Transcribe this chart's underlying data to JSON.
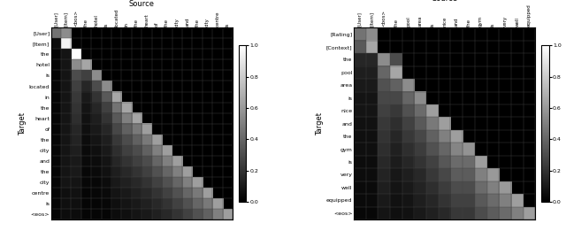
{
  "left_source_labels": [
    "[User]",
    "[Item]",
    "<bos>",
    "the",
    "hotel",
    "is",
    "located",
    "in",
    "the",
    "heart",
    "of",
    "the",
    "city",
    "and",
    "the",
    "city",
    "centre",
    "is"
  ],
  "left_target_labels": [
    "[User]",
    "[Item]",
    "the",
    "hotel",
    "is",
    "located",
    "in",
    "the",
    "heart",
    "of",
    "the",
    "city",
    "and",
    "the",
    "city",
    "centre",
    "is",
    "<eos>"
  ],
  "right_source_labels": [
    "[User]",
    "[Item]",
    "<bos>",
    "the",
    "pool",
    "area",
    "is",
    "nice",
    "and",
    "the",
    "gym",
    "is",
    "very",
    "well",
    "equipped"
  ],
  "right_target_labels": [
    "[Rating]",
    "[Context]",
    "the",
    "pool",
    "area",
    "is",
    "nice",
    "and",
    "the",
    "gym",
    "is",
    "very",
    "well",
    "equipped",
    "<eos>"
  ],
  "left_title": "Source",
  "right_title": "Source",
  "left_ylabel": "Target",
  "right_ylabel": "Target",
  "colormap": "gray",
  "vmin": 0.0,
  "vmax": 1.0,
  "left_matrix": [
    [
      0.45,
      0.55,
      0.0,
      0.0,
      0.0,
      0.0,
      0.0,
      0.0,
      0.0,
      0.0,
      0.0,
      0.0,
      0.0,
      0.0,
      0.0,
      0.0,
      0.0,
      0.0
    ],
    [
      0.05,
      0.95,
      0.0,
      0.0,
      0.0,
      0.0,
      0.0,
      0.0,
      0.0,
      0.0,
      0.0,
      0.0,
      0.0,
      0.0,
      0.0,
      0.0,
      0.0,
      0.0
    ],
    [
      0.02,
      0.08,
      1.0,
      0.0,
      0.0,
      0.0,
      0.0,
      0.0,
      0.0,
      0.0,
      0.0,
      0.0,
      0.0,
      0.0,
      0.0,
      0.0,
      0.0,
      0.0
    ],
    [
      0.02,
      0.08,
      0.55,
      0.65,
      0.0,
      0.0,
      0.0,
      0.0,
      0.0,
      0.0,
      0.0,
      0.0,
      0.0,
      0.0,
      0.0,
      0.0,
      0.0,
      0.0
    ],
    [
      0.02,
      0.08,
      0.3,
      0.25,
      0.55,
      0.0,
      0.0,
      0.0,
      0.0,
      0.0,
      0.0,
      0.0,
      0.0,
      0.0,
      0.0,
      0.0,
      0.0,
      0.0
    ],
    [
      0.02,
      0.08,
      0.25,
      0.15,
      0.3,
      0.55,
      0.0,
      0.0,
      0.0,
      0.0,
      0.0,
      0.0,
      0.0,
      0.0,
      0.0,
      0.0,
      0.0,
      0.0
    ],
    [
      0.02,
      0.08,
      0.22,
      0.1,
      0.2,
      0.35,
      0.65,
      0.0,
      0.0,
      0.0,
      0.0,
      0.0,
      0.0,
      0.0,
      0.0,
      0.0,
      0.0,
      0.0
    ],
    [
      0.02,
      0.08,
      0.2,
      0.08,
      0.15,
      0.25,
      0.45,
      0.65,
      0.0,
      0.0,
      0.0,
      0.0,
      0.0,
      0.0,
      0.0,
      0.0,
      0.0,
      0.0
    ],
    [
      0.02,
      0.08,
      0.18,
      0.07,
      0.12,
      0.2,
      0.35,
      0.5,
      0.65,
      0.0,
      0.0,
      0.0,
      0.0,
      0.0,
      0.0,
      0.0,
      0.0,
      0.0
    ],
    [
      0.02,
      0.08,
      0.15,
      0.06,
      0.1,
      0.15,
      0.28,
      0.38,
      0.48,
      0.62,
      0.0,
      0.0,
      0.0,
      0.0,
      0.0,
      0.0,
      0.0,
      0.0
    ],
    [
      0.02,
      0.08,
      0.14,
      0.05,
      0.08,
      0.12,
      0.22,
      0.3,
      0.38,
      0.48,
      0.62,
      0.0,
      0.0,
      0.0,
      0.0,
      0.0,
      0.0,
      0.0
    ],
    [
      0.02,
      0.08,
      0.12,
      0.04,
      0.06,
      0.1,
      0.18,
      0.25,
      0.3,
      0.38,
      0.5,
      0.62,
      0.0,
      0.0,
      0.0,
      0.0,
      0.0,
      0.0
    ],
    [
      0.02,
      0.08,
      0.1,
      0.04,
      0.05,
      0.08,
      0.15,
      0.2,
      0.25,
      0.3,
      0.4,
      0.5,
      0.62,
      0.0,
      0.0,
      0.0,
      0.0,
      0.0
    ],
    [
      0.02,
      0.08,
      0.1,
      0.03,
      0.04,
      0.07,
      0.12,
      0.16,
      0.2,
      0.25,
      0.32,
      0.4,
      0.5,
      0.62,
      0.0,
      0.0,
      0.0,
      0.0
    ],
    [
      0.02,
      0.08,
      0.08,
      0.03,
      0.03,
      0.05,
      0.1,
      0.13,
      0.16,
      0.2,
      0.26,
      0.32,
      0.4,
      0.5,
      0.62,
      0.0,
      0.0,
      0.0
    ],
    [
      0.02,
      0.06,
      0.07,
      0.02,
      0.03,
      0.04,
      0.08,
      0.1,
      0.13,
      0.16,
      0.2,
      0.26,
      0.32,
      0.4,
      0.48,
      0.62,
      0.0,
      0.0
    ],
    [
      0.02,
      0.06,
      0.06,
      0.02,
      0.02,
      0.03,
      0.06,
      0.08,
      0.1,
      0.13,
      0.16,
      0.2,
      0.26,
      0.32,
      0.4,
      0.48,
      0.62,
      0.0
    ],
    [
      0.02,
      0.05,
      0.05,
      0.02,
      0.02,
      0.02,
      0.05,
      0.06,
      0.08,
      0.1,
      0.13,
      0.16,
      0.2,
      0.26,
      0.32,
      0.38,
      0.5,
      0.62
    ]
  ],
  "right_matrix": [
    [
      0.45,
      0.55,
      0.0,
      0.0,
      0.0,
      0.0,
      0.0,
      0.0,
      0.0,
      0.0,
      0.0,
      0.0,
      0.0,
      0.0,
      0.0
    ],
    [
      0.35,
      0.65,
      0.0,
      0.0,
      0.0,
      0.0,
      0.0,
      0.0,
      0.0,
      0.0,
      0.0,
      0.0,
      0.0,
      0.0,
      0.0
    ],
    [
      0.15,
      0.15,
      0.55,
      0.3,
      0.0,
      0.0,
      0.0,
      0.0,
      0.0,
      0.0,
      0.0,
      0.0,
      0.0,
      0.0,
      0.0
    ],
    [
      0.12,
      0.12,
      0.4,
      0.65,
      0.0,
      0.0,
      0.0,
      0.0,
      0.0,
      0.0,
      0.0,
      0.0,
      0.0,
      0.0,
      0.0
    ],
    [
      0.1,
      0.1,
      0.32,
      0.38,
      0.55,
      0.0,
      0.0,
      0.0,
      0.0,
      0.0,
      0.0,
      0.0,
      0.0,
      0.0,
      0.0
    ],
    [
      0.08,
      0.08,
      0.28,
      0.28,
      0.4,
      0.55,
      0.0,
      0.0,
      0.0,
      0.0,
      0.0,
      0.0,
      0.0,
      0.0,
      0.0
    ],
    [
      0.08,
      0.08,
      0.25,
      0.22,
      0.32,
      0.42,
      0.62,
      0.0,
      0.0,
      0.0,
      0.0,
      0.0,
      0.0,
      0.0,
      0.0
    ],
    [
      0.07,
      0.07,
      0.22,
      0.18,
      0.26,
      0.35,
      0.48,
      0.62,
      0.0,
      0.0,
      0.0,
      0.0,
      0.0,
      0.0,
      0.0
    ],
    [
      0.06,
      0.06,
      0.2,
      0.15,
      0.22,
      0.28,
      0.38,
      0.5,
      0.62,
      0.0,
      0.0,
      0.0,
      0.0,
      0.0,
      0.0
    ],
    [
      0.06,
      0.06,
      0.18,
      0.13,
      0.18,
      0.24,
      0.32,
      0.4,
      0.52,
      0.58,
      0.0,
      0.0,
      0.0,
      0.0,
      0.0
    ],
    [
      0.05,
      0.05,
      0.16,
      0.11,
      0.15,
      0.2,
      0.26,
      0.34,
      0.42,
      0.42,
      0.62,
      0.0,
      0.0,
      0.0,
      0.0
    ],
    [
      0.05,
      0.05,
      0.14,
      0.09,
      0.12,
      0.16,
      0.22,
      0.28,
      0.36,
      0.36,
      0.5,
      0.6,
      0.0,
      0.0,
      0.0
    ],
    [
      0.04,
      0.04,
      0.12,
      0.08,
      0.1,
      0.14,
      0.18,
      0.24,
      0.3,
      0.3,
      0.42,
      0.5,
      0.6,
      0.0,
      0.0
    ],
    [
      0.04,
      0.04,
      0.1,
      0.07,
      0.08,
      0.12,
      0.15,
      0.2,
      0.26,
      0.26,
      0.35,
      0.42,
      0.5,
      0.62,
      0.0
    ],
    [
      0.03,
      0.03,
      0.08,
      0.06,
      0.07,
      0.1,
      0.13,
      0.16,
      0.22,
      0.22,
      0.3,
      0.36,
      0.42,
      0.5,
      0.62
    ]
  ]
}
